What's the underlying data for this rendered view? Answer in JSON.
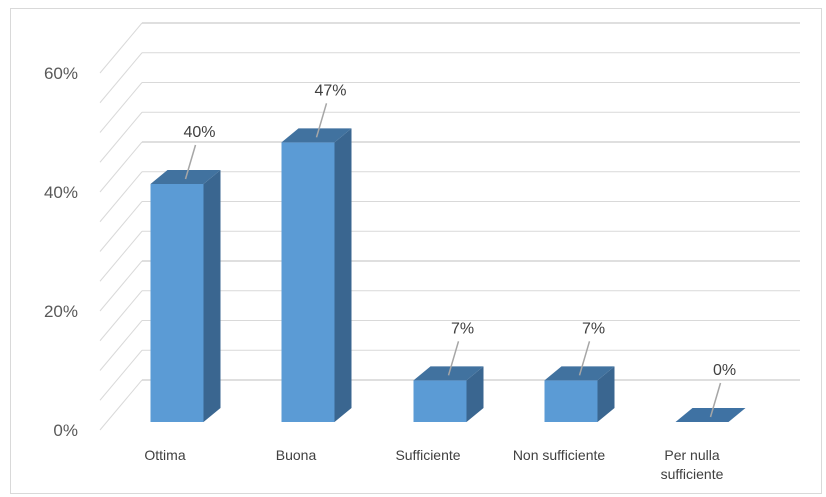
{
  "chart_data": {
    "type": "bar",
    "style": "3d-column",
    "categories": [
      "Ottima",
      "Buona",
      "Sufficiente",
      "Non sufficiente",
      "Per nulla sufficiente"
    ],
    "category_lines": [
      [
        "Ottima"
      ],
      [
        "Buona"
      ],
      [
        "Sufficiente"
      ],
      [
        "Non sufficiente"
      ],
      [
        "Per nulla",
        "sufficiente"
      ]
    ],
    "values": [
      40,
      47,
      7,
      7,
      0
    ],
    "data_labels": [
      "40%",
      "47%",
      "7%",
      "7%",
      "0%"
    ],
    "y_ticks": [
      "0%",
      "20%",
      "40%",
      "60%"
    ],
    "y_tick_values": [
      0,
      20,
      40,
      60
    ],
    "ylim": [
      0,
      60
    ],
    "grid": true,
    "legend": "none",
    "colors": {
      "bar_front": "#5b9bd5",
      "bar_side": "#3a6690",
      "bar_top": "#41729f",
      "grid": "#d9d9d9",
      "leader": "#a6a6a6"
    }
  }
}
